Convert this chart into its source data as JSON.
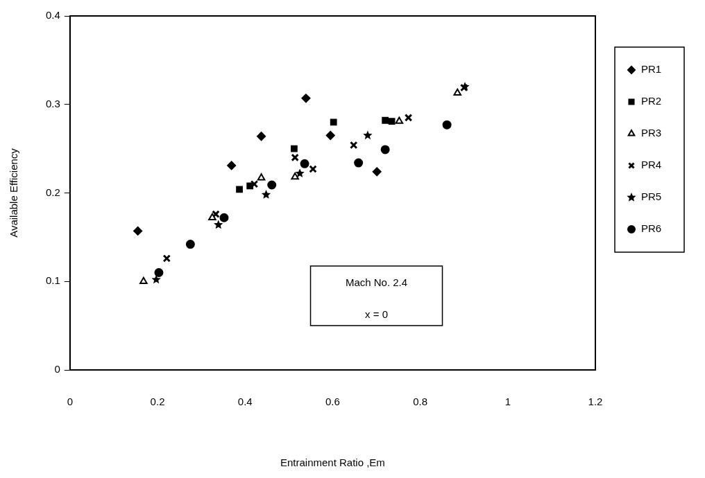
{
  "chart_data": {
    "type": "scatter",
    "xlabel": "Entrainment Ratio ,Em",
    "ylabel": "Available Efficiency",
    "xlim": [
      0,
      1.2
    ],
    "ylim": [
      0,
      0.4
    ],
    "xticks": [
      0,
      0.2,
      0.4,
      0.6,
      0.8,
      1,
      1.2
    ],
    "yticks": [
      0,
      0.1,
      0.2,
      0.3,
      0.4
    ],
    "grid": false,
    "legend": "right",
    "annotations": [
      "Mach No. 2.4",
      "x = 0"
    ],
    "series": [
      {
        "name": "PR1",
        "color": "#000000",
        "marker": "diamond",
        "x": [
          0.155,
          0.369,
          0.437,
          0.539,
          0.595,
          0.701
        ],
        "values": [
          0.157,
          0.231,
          0.264,
          0.307,
          0.265,
          0.224
        ]
      },
      {
        "name": "PR2",
        "color": "#000000",
        "marker": "square",
        "x": [
          0.387,
          0.411,
          0.512,
          0.602,
          0.72,
          0.735
        ],
        "values": [
          0.204,
          0.208,
          0.25,
          0.28,
          0.282,
          0.281
        ]
      },
      {
        "name": "PR3",
        "color": "#000000",
        "marker": "triangle",
        "x": [
          0.168,
          0.325,
          0.437,
          0.514,
          0.68,
          0.752,
          0.885
        ],
        "values": [
          0.1,
          0.172,
          0.217,
          0.218,
          null,
          0.281,
          0.313
        ]
      },
      {
        "name": "PR4",
        "color": "#000000",
        "marker": "cross",
        "x": [
          0.221,
          0.333,
          0.421,
          0.514,
          0.555,
          0.648,
          0.773,
          0.9
        ],
        "values": [
          0.126,
          0.176,
          0.21,
          0.24,
          0.227,
          0.254,
          0.285,
          0.319
        ]
      },
      {
        "name": "PR5",
        "color": "#000000",
        "marker": "star",
        "x": [
          0.197,
          0.339,
          0.448,
          0.525,
          0.68,
          0.902
        ],
        "values": [
          0.102,
          0.164,
          0.198,
          0.222,
          0.265,
          0.32
        ]
      },
      {
        "name": "PR6",
        "color": "#000000",
        "marker": "circle",
        "x": [
          0.203,
          0.275,
          0.352,
          0.461,
          0.536,
          0.659,
          0.72,
          0.861
        ],
        "values": [
          0.11,
          0.142,
          0.172,
          0.209,
          0.233,
          0.234,
          0.249,
          0.277
        ]
      }
    ]
  }
}
